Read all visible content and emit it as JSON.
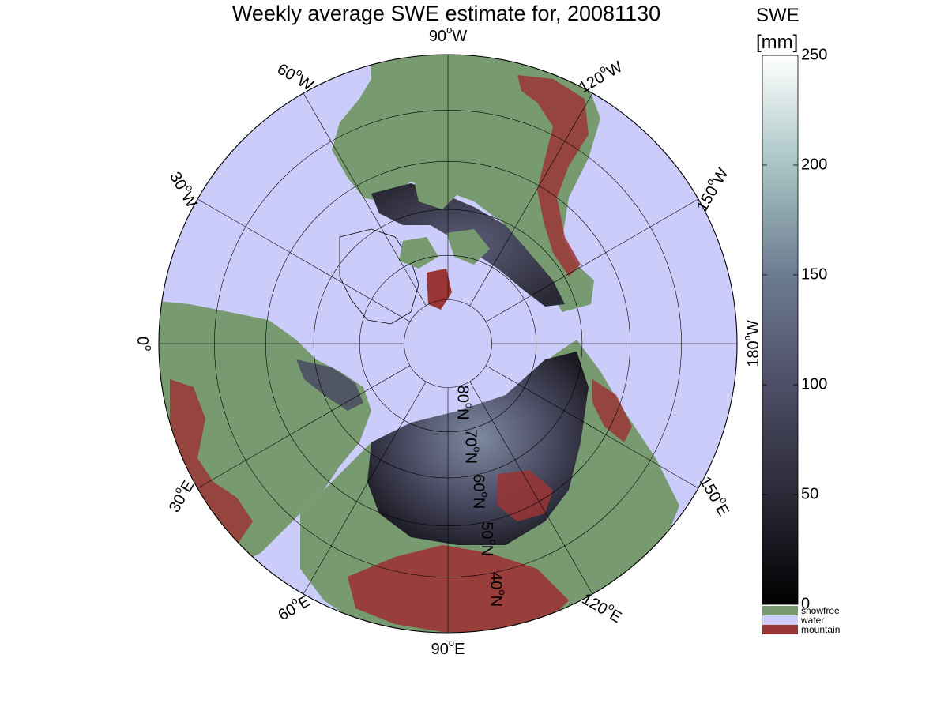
{
  "title": "Weekly average SWE estimate for, 20081130",
  "map": {
    "projection": "north polar stereographic",
    "colors": {
      "water": "#ccccfa",
      "snowfree": "#779a70",
      "mountain": "#9b3535",
      "snow_low": "#101014",
      "snow_mid": "#4a4a62",
      "snow_high": "#7e8aa0"
    },
    "longitude_labels": [
      {
        "base": "90",
        "sup": "o",
        "dir": "W",
        "lon": 90
      },
      {
        "base": "120",
        "sup": "o",
        "dir": "W",
        "lon": 120
      },
      {
        "base": "150",
        "sup": "o",
        "dir": "W",
        "lon": 150
      },
      {
        "base": "180",
        "sup": "o",
        "dir": "W",
        "lon": 180
      },
      {
        "base": "150",
        "sup": "o",
        "dir": "E",
        "lon": -150
      },
      {
        "base": "120",
        "sup": "o",
        "dir": "E",
        "lon": -120
      },
      {
        "base": "90",
        "sup": "o",
        "dir": "E",
        "lon": -90
      },
      {
        "base": "60",
        "sup": "o",
        "dir": "E",
        "lon": -60
      },
      {
        "base": "30",
        "sup": "o",
        "dir": "E",
        "lon": -30
      },
      {
        "base": "0",
        "sup": "o",
        "dir": "",
        "lon": 0
      },
      {
        "base": "30",
        "sup": "o",
        "dir": "W",
        "lon": 30
      },
      {
        "base": "60",
        "sup": "o",
        "dir": "W",
        "lon": 60
      }
    ],
    "latitude_labels": [
      {
        "base": "80",
        "sup": "o",
        "dir": "N",
        "lat": 80
      },
      {
        "base": "70",
        "sup": "o",
        "dir": "N",
        "lat": 70
      },
      {
        "base": "60",
        "sup": "o",
        "dir": "N",
        "lat": 60
      },
      {
        "base": "50",
        "sup": "o",
        "dir": "N",
        "lat": 50
      },
      {
        "base": "40",
        "sup": "o",
        "dir": "N",
        "lat": 40
      }
    ]
  },
  "colorbar": {
    "title_line1": "SWE",
    "title_line2": "[mm]",
    "ticks": [
      0,
      50,
      100,
      150,
      200,
      250
    ],
    "range": [
      0,
      250
    ],
    "categories": [
      {
        "label": "snowfree",
        "color": "#779a70"
      },
      {
        "label": "water",
        "color": "#ccccfa"
      },
      {
        "label": "mountain",
        "color": "#9b3535"
      }
    ]
  }
}
